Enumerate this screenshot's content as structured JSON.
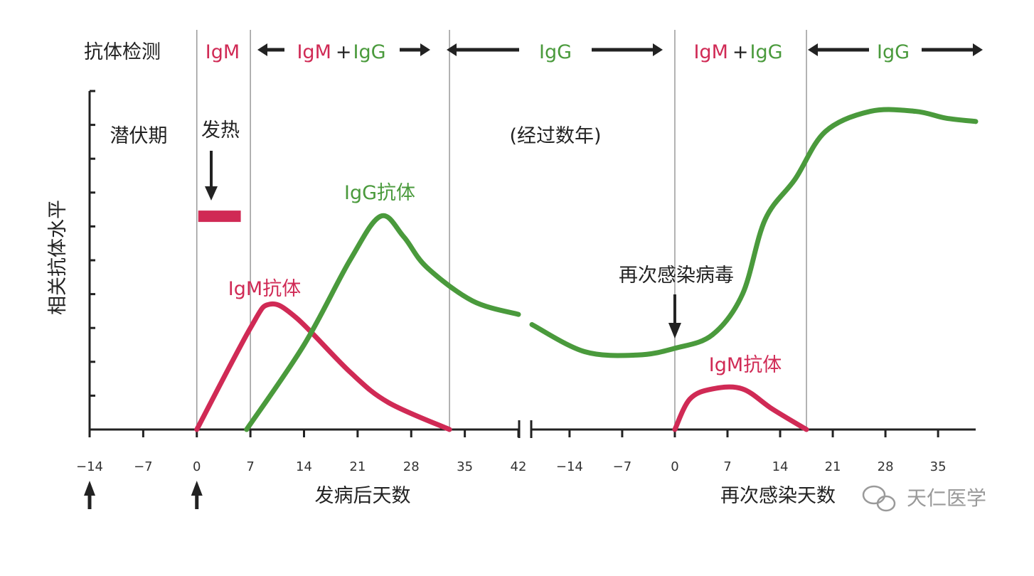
{
  "chart_data": {
    "type": "line",
    "title": "",
    "ylabel": "相关抗体水平",
    "y_ticks_labeled": false,
    "colors": {
      "IgM": "#d02a55",
      "IgG": "#4a9a3c",
      "axis": "#222222",
      "divider": "#9a9a9a"
    },
    "panels": [
      {
        "xlabel": "发病后天数",
        "x_ticks": [
          -14,
          -7,
          0,
          7,
          14,
          21,
          28,
          35,
          42
        ],
        "xlim": [
          -14,
          42
        ],
        "ylim": [
          0,
          100
        ],
        "header_label": "抗体检测",
        "header": [
          {
            "segment": "IgM"
          },
          {
            "segment": "IgM + IgG"
          },
          {
            "segment": "IgG"
          }
        ],
        "phase_labels": {
          "incubation": "潜伏期",
          "fever": "发热",
          "years": "(经过数年)"
        },
        "fever_bar": {
          "x": [
            0,
            5
          ],
          "y": 63
        },
        "arrows_below_axis": [
          -14,
          0
        ],
        "dividers": [
          0,
          7,
          33
        ],
        "series": [
          {
            "name": "IgM抗体",
            "color": "IgM",
            "points": [
              [
                0,
                0
              ],
              [
                7,
                30
              ],
              [
                9.5,
                37
              ],
              [
                13,
                33
              ],
              [
                20,
                17
              ],
              [
                25,
                8
              ],
              [
                33,
                0
              ]
            ]
          },
          {
            "name": "IgG抗体",
            "color": "IgG",
            "points": [
              [
                6.5,
                0
              ],
              [
                14,
                25
              ],
              [
                20,
                50
              ],
              [
                24,
                63
              ],
              [
                27,
                57
              ],
              [
                30,
                48
              ],
              [
                36,
                38
              ],
              [
                42,
                34
              ]
            ]
          }
        ]
      },
      {
        "xlabel": "再次感染天数",
        "x_ticks": [
          -14,
          -7,
          0,
          7,
          14,
          21,
          28,
          35
        ],
        "xlim": [
          -19,
          40
        ],
        "ylim": [
          0,
          100
        ],
        "header": [
          {
            "segment": "IgM + IgG"
          },
          {
            "segment": "IgG"
          }
        ],
        "annotation": "再次感染病毒",
        "dividers": [
          0,
          17.5
        ],
        "series": [
          {
            "name": "IgM抗体",
            "color": "IgM",
            "points": [
              [
                0,
                0
              ],
              [
                2,
                9
              ],
              [
                5,
                12
              ],
              [
                9,
                12
              ],
              [
                13,
                6
              ],
              [
                17.5,
                0
              ]
            ]
          },
          {
            "name": "IgG抗体",
            "color": "IgG",
            "points": [
              [
                -19,
                31
              ],
              [
                -12,
                23
              ],
              [
                -5,
                22
              ],
              [
                0,
                24
              ],
              [
                5,
                28
              ],
              [
                9,
                40
              ],
              [
                12,
                62
              ],
              [
                16,
                74
              ],
              [
                20,
                88
              ],
              [
                26,
                94
              ],
              [
                32,
                94
              ],
              [
                36,
                92
              ],
              [
                40,
                91
              ]
            ]
          }
        ]
      }
    ],
    "axis_break": "between day 42 and day -14 (reinfection timeline)"
  },
  "watermark": "天仁医学"
}
